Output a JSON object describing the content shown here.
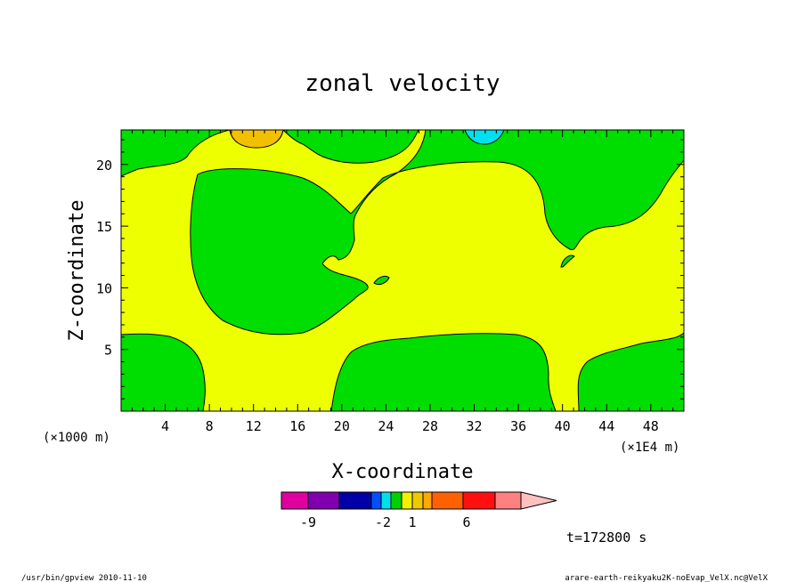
{
  "chart_data": {
    "type": "heatmap",
    "title": "zonal velocity",
    "xlabel": "X-coordinate",
    "ylabel": "Z-coordinate",
    "x_unit_left": "(×1000 m)",
    "x_unit_right": "(×1E4 m)",
    "xticks": [
      4,
      8,
      12,
      16,
      20,
      24,
      28,
      32,
      36,
      40,
      44,
      48
    ],
    "yticks": [
      5,
      10,
      15,
      20
    ],
    "xlim": [
      0,
      51
    ],
    "ylim": [
      0,
      22.8
    ],
    "colorbar": {
      "colors": [
        "#e000a0",
        "#8000b0",
        "#0000a8",
        "#0050ff",
        "#00e0e8",
        "#00d000",
        "#f0f000",
        "#f0c800",
        "#ffa800",
        "#ff6000",
        "#ff1010",
        "#ff8080",
        "#ffc0c0"
      ],
      "tick_labels": [
        "-9",
        "-2",
        "1",
        "6"
      ],
      "extend": "max"
    },
    "regions": {
      "green_fill": "#00dd00",
      "yellow_fill": "#eeff00",
      "orange_fill": "#f2c000",
      "cyan_fill": "#00e0f0"
    }
  },
  "annotation_time": "t=172800 s",
  "footer_left": "/usr/bin/gpview  2010-11-10",
  "footer_right": "arare-earth-reikyaku2K-noEvap_VelX.nc@VelX"
}
